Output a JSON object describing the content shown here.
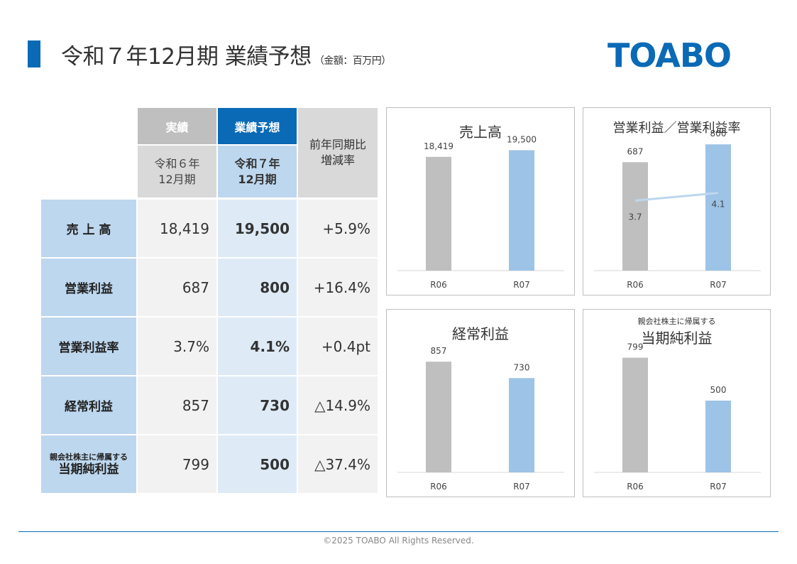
{
  "title": "令和７年12月期 業績予想",
  "title_unit": "（金額：百万円）",
  "logo": "TOABO",
  "table": {
    "hdr_actual": "実績",
    "hdr_forecast": "業績予想",
    "hdr_yoy_1": "前年同期比",
    "hdr_yoy_2": "増減率",
    "sub_actual_1": "令和６年",
    "sub_actual_2": "12月期",
    "sub_forecast_1": "令和７年",
    "sub_forecast_2": "12月期",
    "rows": [
      {
        "label": "売 上 高",
        "actual": "18,419",
        "forecast": "19,500",
        "yoy": "+5.9%"
      },
      {
        "label": "営業利益",
        "actual": "687",
        "forecast": "800",
        "yoy": "+16.4%"
      },
      {
        "label": "営業利益率",
        "actual": "3.7%",
        "forecast": "4.1%",
        "yoy": "+0.4pt"
      },
      {
        "label": "経常利益",
        "actual": "857",
        "forecast": "730",
        "yoy": "△14.9%"
      },
      {
        "label_small": "親会社株主に帰属する",
        "label": "当期純利益",
        "actual": "799",
        "forecast": "500",
        "yoy": "△37.4%"
      }
    ]
  },
  "chart_data": [
    {
      "type": "bar",
      "title": "売上高",
      "categories": [
        "R06",
        "R07"
      ],
      "values": [
        18419,
        19500
      ],
      "value_labels": [
        "18,419",
        "19,500"
      ],
      "ylim": [
        0,
        23000
      ]
    },
    {
      "type": "bar",
      "title": "営業利益／営業利益率",
      "categories": [
        "R06",
        "R07"
      ],
      "values": [
        687,
        800
      ],
      "value_labels": [
        "687",
        "800"
      ],
      "ylim": [
        0,
        900
      ],
      "line_series": {
        "name": "営業利益率",
        "values": [
          3.7,
          4.1
        ],
        "value_labels": [
          "3.7",
          "4.1"
        ],
        "ylim": [
          0,
          7.5
        ]
      }
    },
    {
      "type": "bar",
      "title": "経常利益",
      "categories": [
        "R06",
        "R07"
      ],
      "values": [
        857,
        730
      ],
      "value_labels": [
        "857",
        "730"
      ],
      "ylim": [
        0,
        1100
      ]
    },
    {
      "type": "bar",
      "title_small": "親会社株主に帰属する",
      "title": "当期純利益",
      "categories": [
        "R06",
        "R07"
      ],
      "values": [
        799,
        500
      ],
      "value_labels": [
        "799",
        "500"
      ],
      "ylim": [
        0,
        990
      ]
    }
  ],
  "colors": {
    "brand": "#0a6ab6",
    "bar_prev": "#bfbfbf",
    "bar_curr": "#9dc3e6",
    "line": "#bdd7ee"
  },
  "footer": "©2025 TOABO All Rights Reserved."
}
